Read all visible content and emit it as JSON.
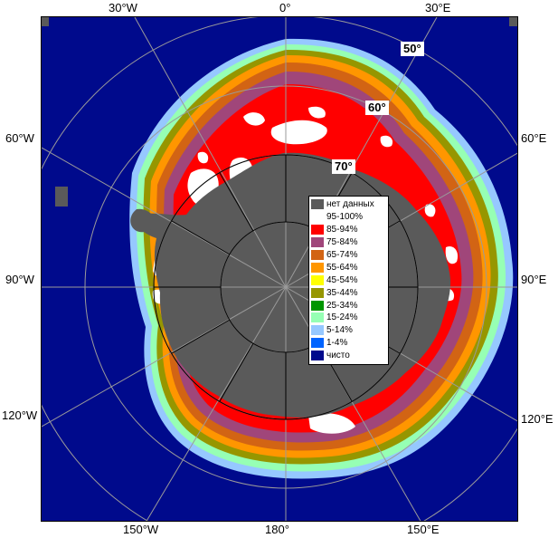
{
  "map": {
    "longitude_labels": {
      "w30": "30°W",
      "e0": "0°",
      "e30": "30°E",
      "w60": "60°W",
      "e60": "60°E",
      "w90": "90°W",
      "e90": "90°E",
      "w120": "120°W",
      "e120": "120°E",
      "w150": "150°W",
      "e180": "180°",
      "e150": "150°E"
    },
    "latitude_labels": {
      "lat50": "50°",
      "lat60": "60°",
      "lat70": "70°"
    },
    "colors": {
      "ocean": "#000a8c",
      "land": "#5a5a5a",
      "graticule": "#9a9a9a"
    }
  },
  "legend": {
    "items": [
      {
        "label": "нет данных",
        "color": "#5a5a5a"
      },
      {
        "label": "95-100%",
        "color": "#ffffff"
      },
      {
        "label": "85-94%",
        "color": "#ff0000"
      },
      {
        "label": "75-84%",
        "color": "#a0467a"
      },
      {
        "label": "65-74%",
        "color": "#d26414"
      },
      {
        "label": "55-64%",
        "color": "#ff9600"
      },
      {
        "label": "45-54%",
        "color": "#ffff00"
      },
      {
        "label": "35-44%",
        "color": "#969600"
      },
      {
        "label": "25-34%",
        "color": "#009600"
      },
      {
        "label": "15-24%",
        "color": "#96ffb4"
      },
      {
        "label": "5-14%",
        "color": "#96c8ff"
      },
      {
        "label": "1-4%",
        "color": "#0064ff"
      },
      {
        "label": "чисто",
        "color": "#000a8c"
      }
    ]
  }
}
